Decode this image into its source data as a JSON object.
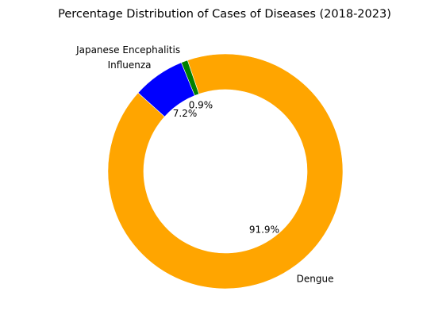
{
  "chart_data": {
    "type": "pie",
    "subtype": "donut",
    "title": "Percentage Distribution of Cases of Diseases (2018-2023)",
    "categories": [
      "Dengue",
      "Japanese Encephalitis",
      "Influenza"
    ],
    "values": [
      91.9,
      0.9,
      7.2
    ],
    "pct_labels": [
      "91.9%",
      "0.9%",
      "7.2%"
    ],
    "colors": [
      "#FFA500",
      "#008000",
      "#0000FF"
    ],
    "legend": "none",
    "grid": false
  }
}
